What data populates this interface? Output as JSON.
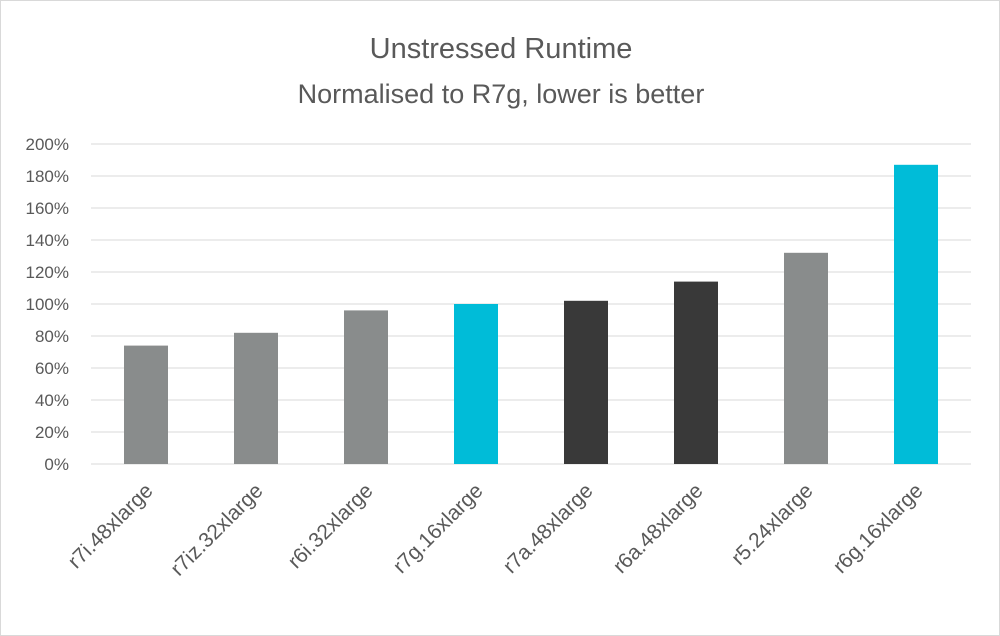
{
  "chart_data": {
    "type": "bar",
    "title": "Unstressed Runtime",
    "subtitle": "Normalised to R7g, lower is better",
    "categories": [
      "r7i.48xlarge",
      "r7iz.32xlarge",
      "r6i.32xlarge",
      "r7g.16xlarge",
      "r7a.48xlarge",
      "r6a.48xlarge",
      "r5.24xlarge",
      "r6g.16xlarge"
    ],
    "values": [
      74,
      82,
      96,
      100,
      102,
      114,
      132,
      187
    ],
    "bar_colors": [
      "#898c8c",
      "#898c8c",
      "#898c8c",
      "#00bcd8",
      "#393939",
      "#393939",
      "#898c8c",
      "#00bcd8"
    ],
    "ylim": [
      0,
      200
    ],
    "y_ticks": [
      0,
      20,
      40,
      60,
      80,
      100,
      120,
      140,
      160,
      180,
      200
    ],
    "y_tick_labels": [
      "0%",
      "20%",
      "40%",
      "60%",
      "80%",
      "100%",
      "120%",
      "140%",
      "160%",
      "180%",
      "200%"
    ],
    "grid": true,
    "xlabel": "",
    "ylabel": ""
  }
}
